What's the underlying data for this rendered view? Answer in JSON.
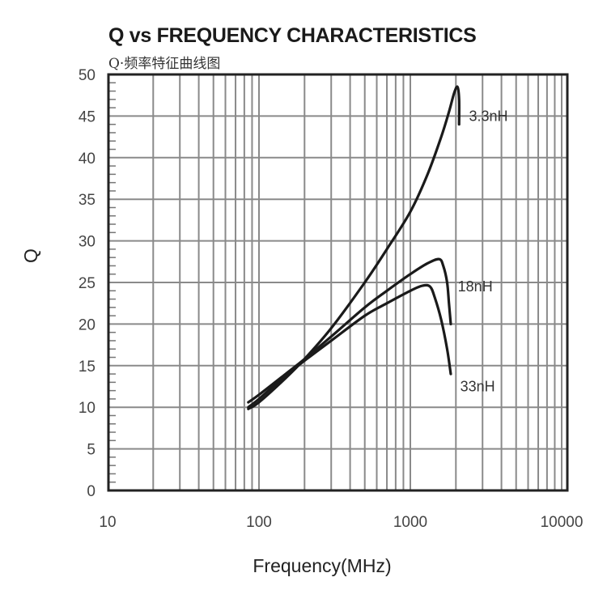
{
  "header": {
    "title": "Q vs FREQUENCY CHARACTERISTICS",
    "subtitle": "Q·频率特征曲线图"
  },
  "axes": {
    "x_label": "Frequency(MHz)",
    "y_label": "Q",
    "x_ticks": [
      "10",
      "100",
      "1000",
      "10000"
    ],
    "y_ticks": [
      "0",
      "5",
      "10",
      "15",
      "20",
      "25",
      "30",
      "35",
      "40",
      "45",
      "50"
    ]
  },
  "colors": {
    "line": "#1a1a1a",
    "grid": "#8a8a8a",
    "frame": "#222222"
  },
  "chart_data": {
    "type": "line",
    "title": "Q vs FREQUENCY CHARACTERISTICS",
    "subtitle": "Q·频率特征曲线图",
    "xlabel": "Frequency(MHz)",
    "ylabel": "Q",
    "xscale": "log",
    "xlim": [
      10,
      10000
    ],
    "ylim": [
      0,
      50
    ],
    "grid": true,
    "legend": "inline labels at right of curves",
    "series": [
      {
        "name": "3.3nH",
        "x": [
          85,
          100,
          150,
          200,
          300,
          500,
          700,
          1000,
          1300,
          1600,
          1800,
          1950,
          2050,
          2100,
          2100
        ],
        "y": [
          9.8,
          10.6,
          13.5,
          15.8,
          19.5,
          25,
          29,
          33.5,
          38,
          42.5,
          45.5,
          47.8,
          48.5,
          47,
          44
        ]
      },
      {
        "name": "18nH",
        "x": [
          85,
          100,
          150,
          200,
          300,
          500,
          700,
          1000,
          1300,
          1550,
          1650,
          1750,
          1800,
          1850
        ],
        "y": [
          10.6,
          11.5,
          14,
          15.8,
          18.5,
          22,
          24,
          26,
          27.3,
          27.8,
          27,
          25,
          22.5,
          20
        ]
      },
      {
        "name": "33nH",
        "x": [
          85,
          100,
          150,
          200,
          300,
          500,
          700,
          1000,
          1200,
          1350,
          1450,
          1600,
          1750,
          1850
        ],
        "y": [
          10,
          11,
          13.8,
          15.6,
          18,
          21,
          22.5,
          24,
          24.6,
          24.5,
          23.2,
          20.5,
          17,
          14
        ]
      }
    ],
    "annotations": [
      {
        "text": "3.3nH",
        "x": 3200,
        "y": 45
      },
      {
        "text": "18nH",
        "x": 2700,
        "y": 24.5
      },
      {
        "text": "33nH",
        "x": 2800,
        "y": 12.5
      }
    ]
  }
}
